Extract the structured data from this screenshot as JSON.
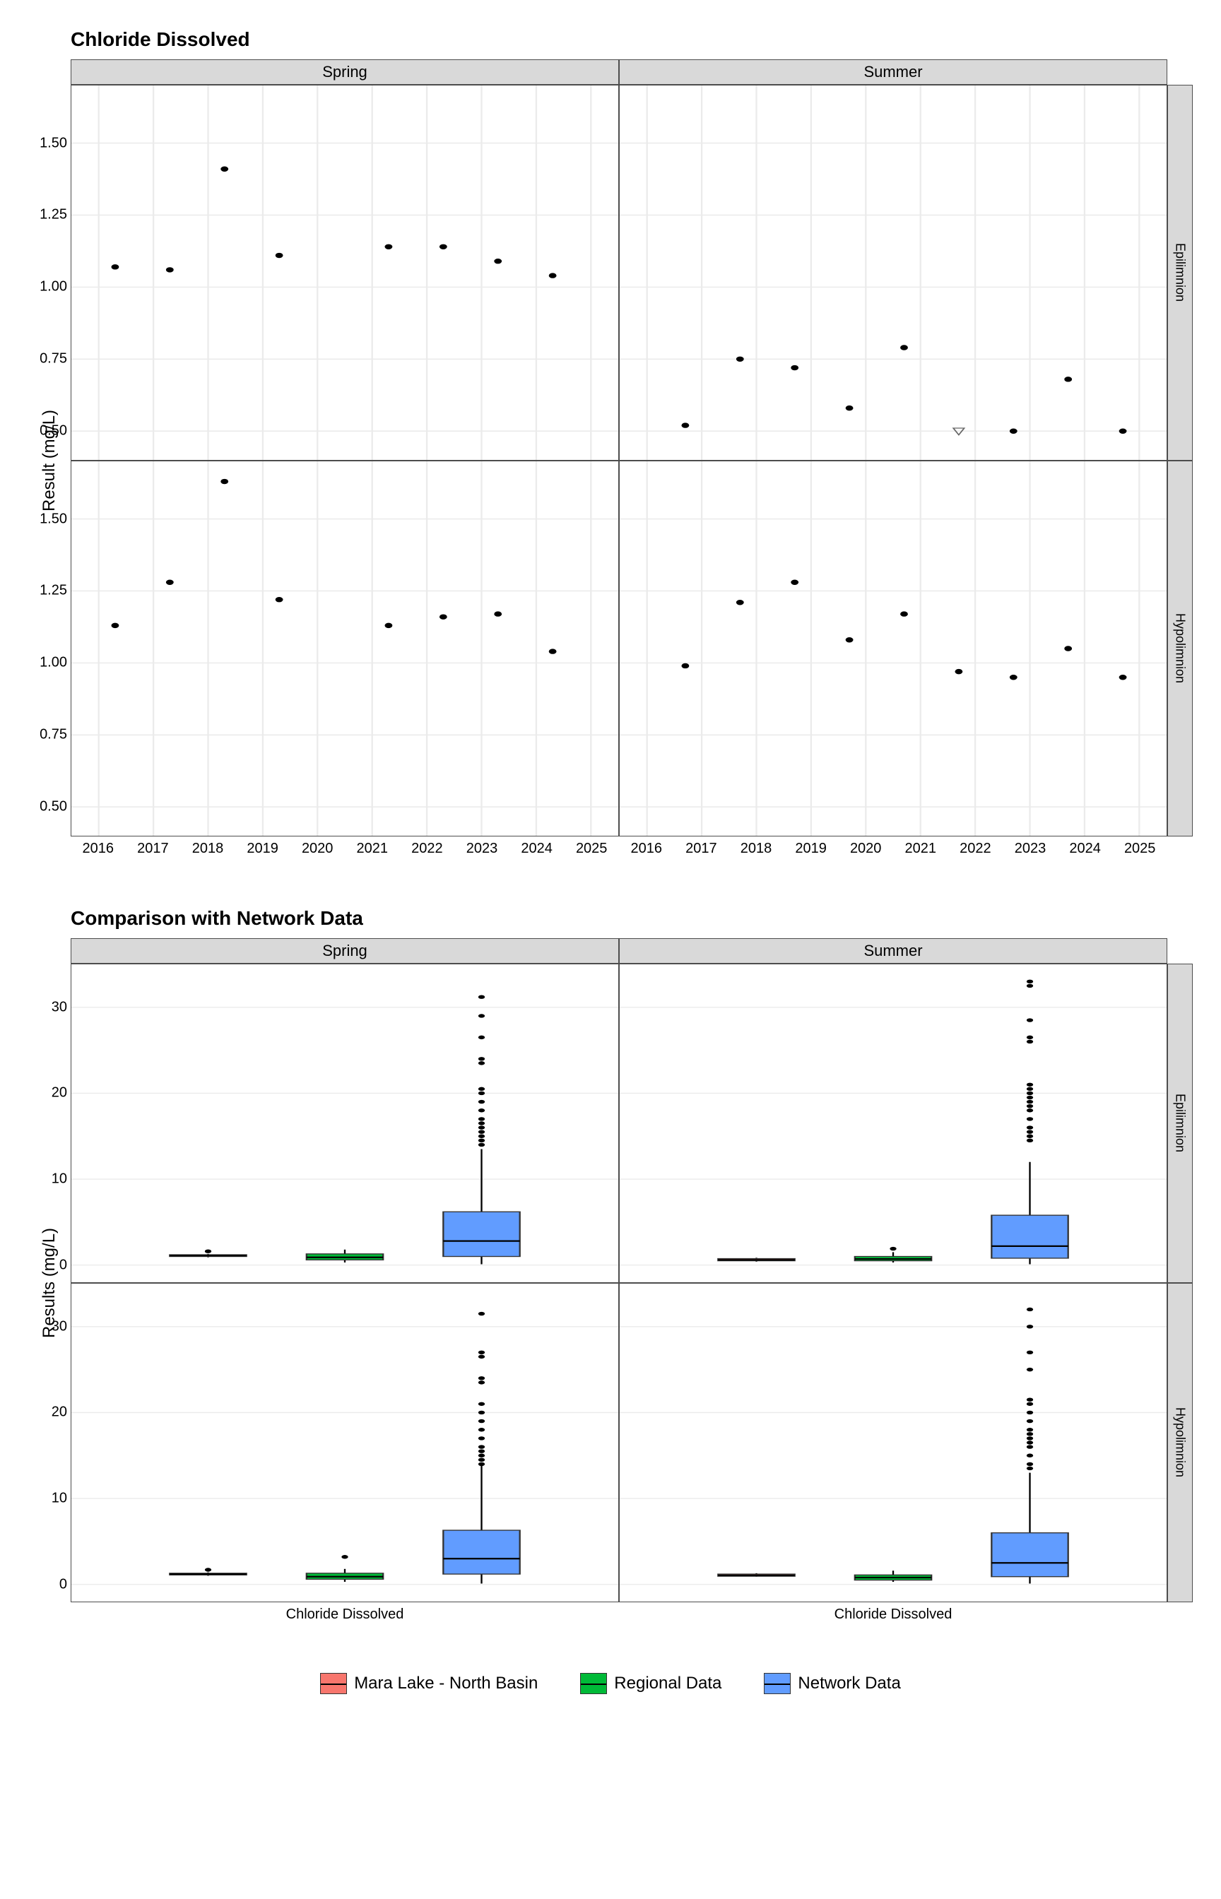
{
  "colors": {
    "background": "#ffffff",
    "panel_border": "#4d4d4d",
    "strip_bg": "#d9d9d9",
    "grid_major": "#ebebeb",
    "grid_minor": "#f5f5f5",
    "point": "#000000",
    "box_mara": "#f8766d",
    "box_regional": "#00ba38",
    "box_network": "#619cff",
    "box_border": "#333333"
  },
  "scatter": {
    "title": "Chloride Dissolved",
    "ylabel": "Result (mg/L)",
    "col_facets": [
      "Spring",
      "Summer"
    ],
    "row_facets": [
      "Epilimnion",
      "Hypolimnion"
    ],
    "x_ticks": [
      2016,
      2017,
      2018,
      2019,
      2020,
      2021,
      2022,
      2023,
      2024,
      2025
    ],
    "x_domain": [
      2015.5,
      2025.5
    ],
    "y_ticks": [
      0.5,
      0.75,
      1.0,
      1.25,
      1.5
    ],
    "y_domain": [
      0.4,
      1.7
    ],
    "panels": {
      "Spring_Epilimnion": {
        "points": [
          [
            2016.3,
            1.07
          ],
          [
            2017.3,
            1.06
          ],
          [
            2018.3,
            1.41
          ],
          [
            2019.3,
            1.11
          ],
          [
            2021.3,
            1.14
          ],
          [
            2022.3,
            1.14
          ],
          [
            2023.3,
            1.09
          ],
          [
            2024.3,
            1.04
          ]
        ],
        "open": []
      },
      "Summer_Epilimnion": {
        "points": [
          [
            2016.7,
            0.52
          ],
          [
            2017.7,
            0.75
          ],
          [
            2018.7,
            0.72
          ],
          [
            2019.7,
            0.58
          ],
          [
            2020.7,
            0.79
          ],
          [
            2022.7,
            0.5
          ],
          [
            2023.7,
            0.68
          ],
          [
            2024.7,
            0.5
          ]
        ],
        "open": [
          [
            2021.7,
            0.5
          ]
        ]
      },
      "Spring_Hypolimnion": {
        "points": [
          [
            2016.3,
            1.13
          ],
          [
            2017.3,
            1.28
          ],
          [
            2018.3,
            1.63
          ],
          [
            2019.3,
            1.22
          ],
          [
            2021.3,
            1.13
          ],
          [
            2022.3,
            1.16
          ],
          [
            2023.3,
            1.17
          ],
          [
            2024.3,
            1.04
          ]
        ],
        "open": []
      },
      "Summer_Hypolimnion": {
        "points": [
          [
            2016.7,
            0.99
          ],
          [
            2017.7,
            1.21
          ],
          [
            2018.7,
            1.28
          ],
          [
            2019.7,
            1.08
          ],
          [
            2020.7,
            1.17
          ],
          [
            2021.7,
            0.97
          ],
          [
            2022.7,
            0.95
          ],
          [
            2023.7,
            1.05
          ],
          [
            2024.7,
            0.95
          ]
        ],
        "open": []
      }
    }
  },
  "boxplot": {
    "title": "Comparison with Network Data",
    "ylabel": "Results (mg/L)",
    "col_facets": [
      "Spring",
      "Summer"
    ],
    "row_facets": [
      "Epilimnion",
      "Hypolimnion"
    ],
    "x_label": "Chloride Dissolved",
    "y_ticks": [
      0,
      10,
      20,
      30
    ],
    "y_domain": [
      -2,
      35
    ],
    "groups": [
      "Mara Lake - North Basin",
      "Regional Data",
      "Network Data"
    ],
    "group_colors": [
      "#f8766d",
      "#00ba38",
      "#619cff"
    ],
    "panels": {
      "Spring_Epilimnion": {
        "boxes": [
          {
            "min": 0.9,
            "q1": 1.0,
            "med": 1.1,
            "q3": 1.2,
            "max": 1.3,
            "out": [
              1.6
            ]
          },
          {
            "min": 0.3,
            "q1": 0.6,
            "med": 0.9,
            "q3": 1.3,
            "max": 1.8,
            "out": []
          },
          {
            "min": 0.1,
            "q1": 1.0,
            "med": 2.8,
            "q3": 6.2,
            "max": 13.5,
            "out": [
              14,
              14.5,
              15,
              15.5,
              16,
              16.5,
              17,
              18,
              19,
              20,
              20.5,
              23.5,
              24,
              26.5,
              29,
              31.2
            ]
          }
        ]
      },
      "Summer_Epilimnion": {
        "boxes": [
          {
            "min": 0.4,
            "q1": 0.5,
            "med": 0.6,
            "q3": 0.75,
            "max": 0.85,
            "out": []
          },
          {
            "min": 0.3,
            "q1": 0.5,
            "med": 0.7,
            "q3": 1.0,
            "max": 1.5,
            "out": [
              1.9
            ]
          },
          {
            "min": 0.1,
            "q1": 0.8,
            "med": 2.2,
            "q3": 5.8,
            "max": 12.0,
            "out": [
              14.5,
              15,
              15.5,
              16,
              17,
              18,
              18.5,
              19,
              19.5,
              20,
              20.5,
              21,
              26,
              26.5,
              28.5,
              32.5,
              33
            ]
          }
        ]
      },
      "Spring_Hypolimnion": {
        "boxes": [
          {
            "min": 1.0,
            "q1": 1.1,
            "med": 1.2,
            "q3": 1.3,
            "max": 1.4,
            "out": [
              1.7
            ]
          },
          {
            "min": 0.3,
            "q1": 0.6,
            "med": 0.9,
            "q3": 1.3,
            "max": 1.8,
            "out": [
              3.2
            ]
          },
          {
            "min": 0.1,
            "q1": 1.2,
            "med": 3.0,
            "q3": 6.3,
            "max": 13.8,
            "out": [
              14,
              14.5,
              15,
              15.5,
              16,
              17,
              18,
              19,
              20,
              21,
              23.5,
              24,
              26.5,
              27,
              31.5
            ]
          }
        ]
      },
      "Summer_Hypolimnion": {
        "boxes": [
          {
            "min": 0.9,
            "q1": 0.95,
            "med": 1.05,
            "q3": 1.2,
            "max": 1.3,
            "out": []
          },
          {
            "min": 0.3,
            "q1": 0.5,
            "med": 0.8,
            "q3": 1.1,
            "max": 1.6,
            "out": []
          },
          {
            "min": 0.1,
            "q1": 0.9,
            "med": 2.5,
            "q3": 6.0,
            "max": 13.0,
            "out": [
              13.5,
              14,
              15,
              16,
              16.5,
              17,
              17.5,
              18,
              19,
              20,
              21,
              21.5,
              25,
              27,
              30,
              32
            ]
          }
        ]
      }
    }
  },
  "legend": {
    "items": [
      "Mara Lake - North Basin",
      "Regional Data",
      "Network Data"
    ]
  }
}
